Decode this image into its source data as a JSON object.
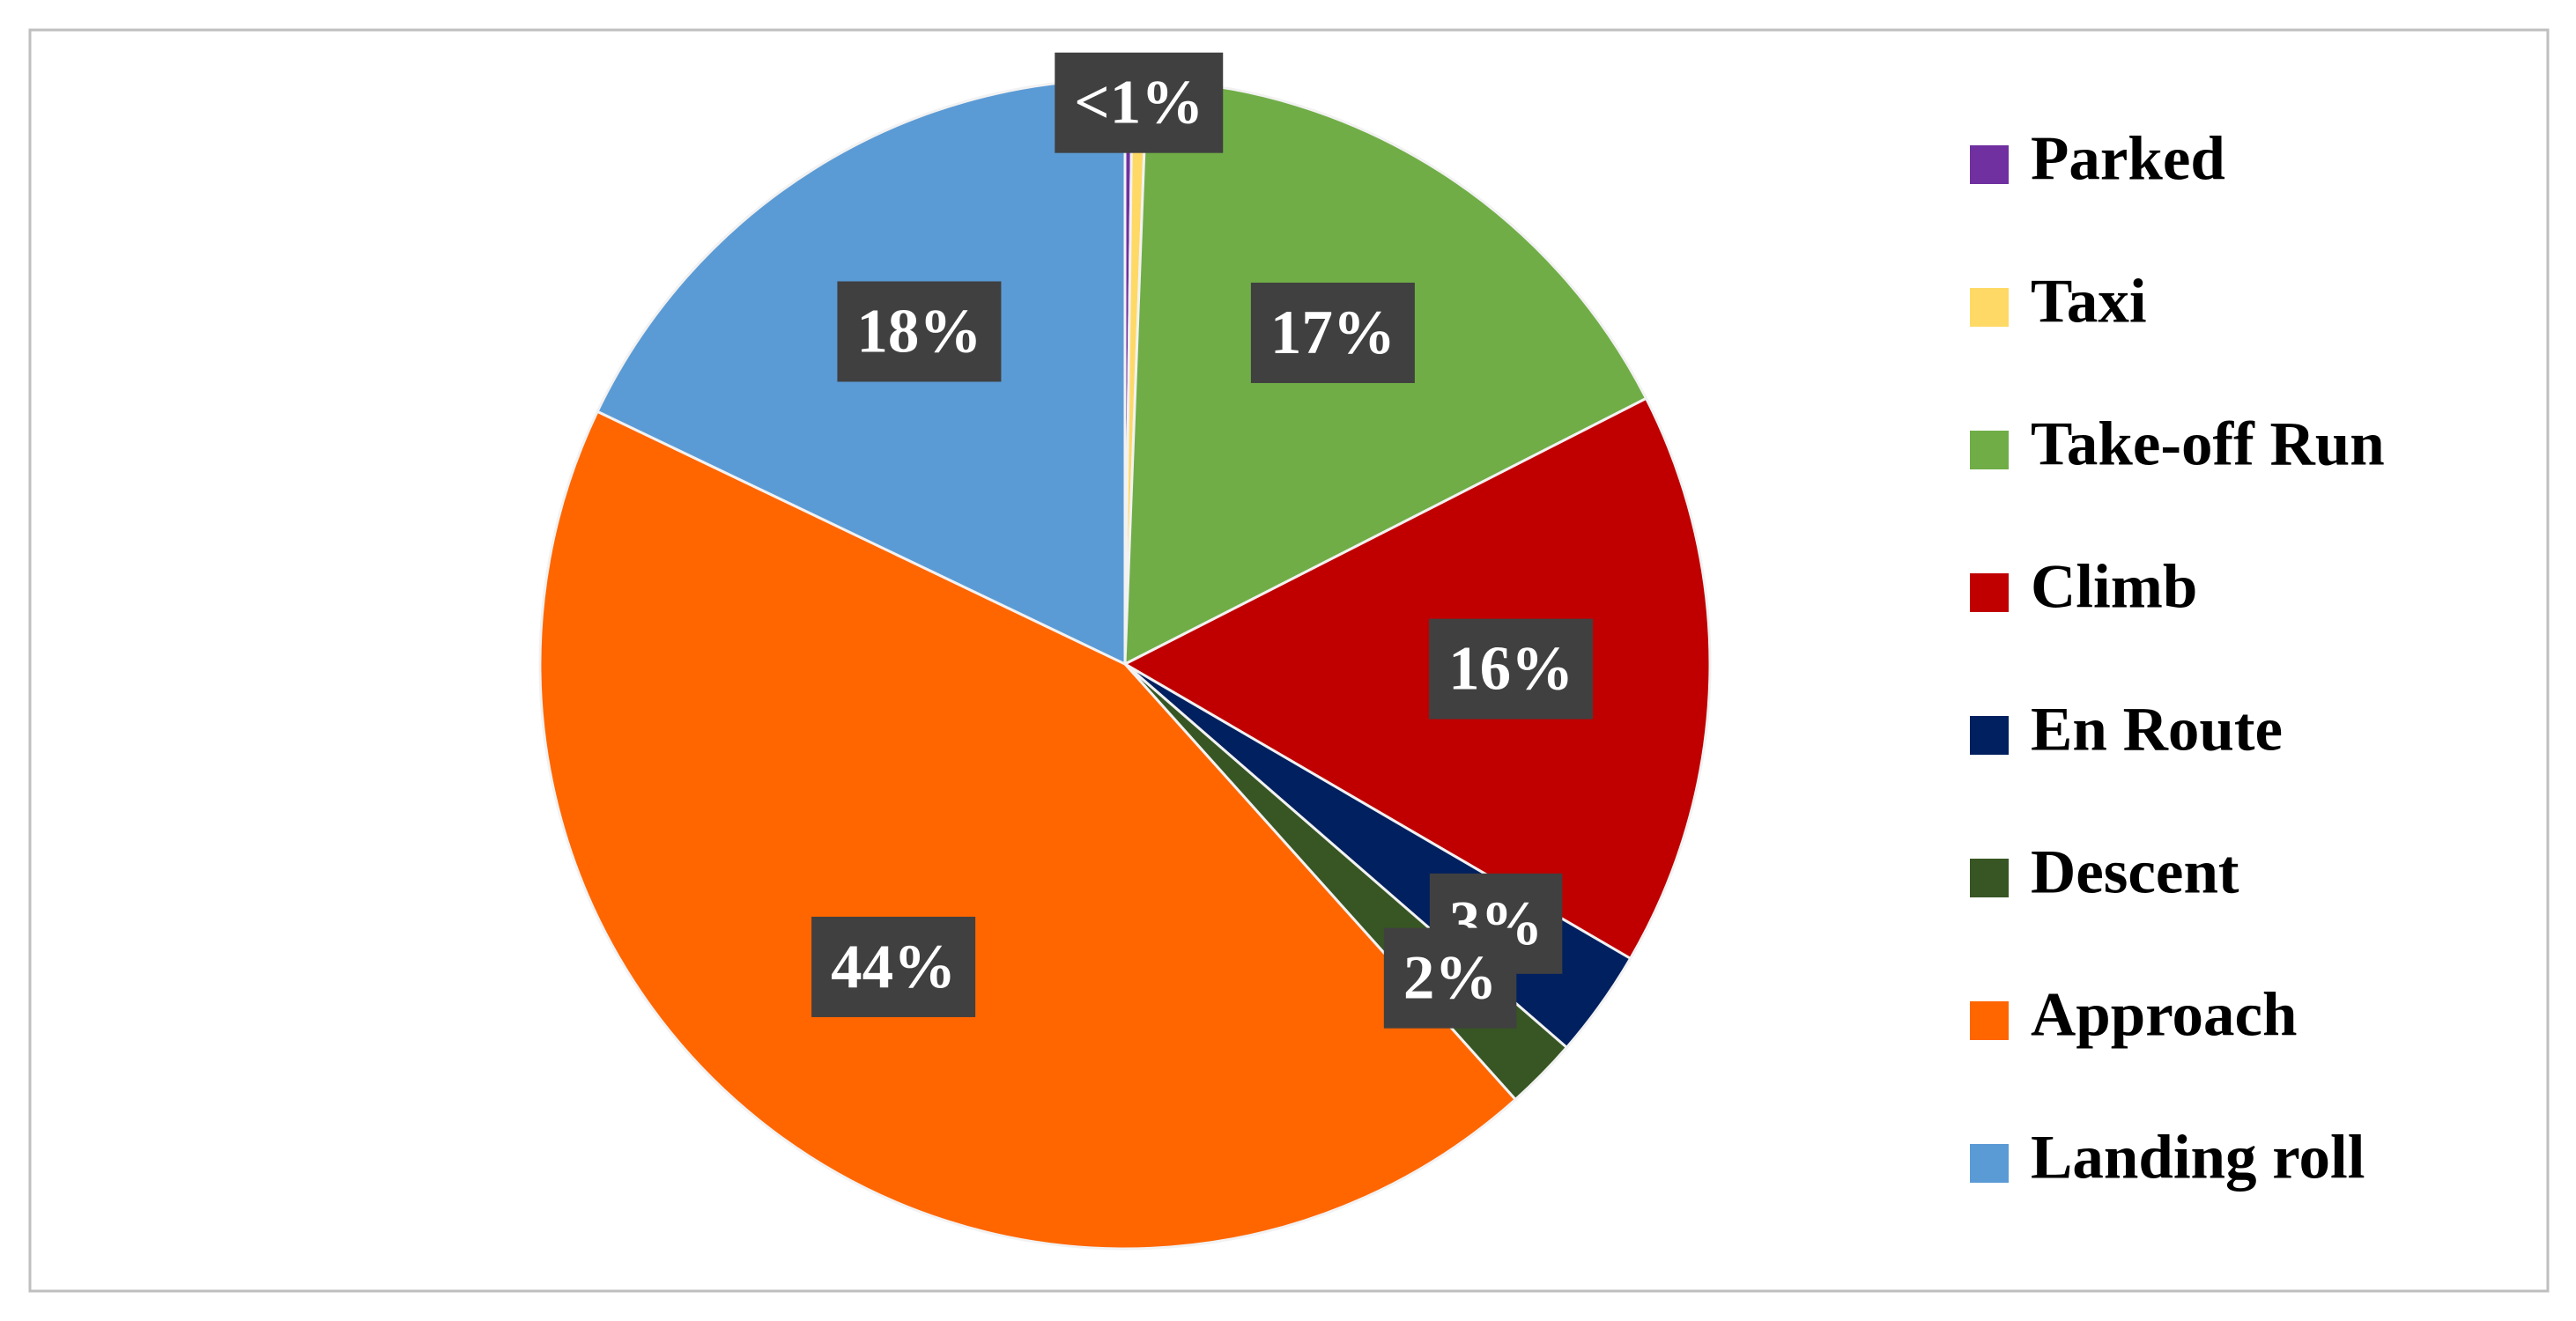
{
  "chart_data": {
    "type": "pie",
    "categories": [
      "Parked",
      "Taxi",
      "Take-off Run",
      "Climb",
      "En Route",
      "Descent",
      "Approach",
      "Landing roll"
    ],
    "values": [
      0.2,
      0.4,
      17,
      16,
      3,
      2,
      44,
      18
    ],
    "value_labels": [
      null,
      "<1%",
      "17%",
      "16%",
      "3%",
      "2%",
      "44%",
      "18%"
    ],
    "colors": [
      "#7030a0",
      "#ffd966",
      "#70ad47",
      "#c00000",
      "#002060",
      "#375623",
      "#ff6600",
      "#5b9bd5"
    ],
    "legend": "right"
  }
}
